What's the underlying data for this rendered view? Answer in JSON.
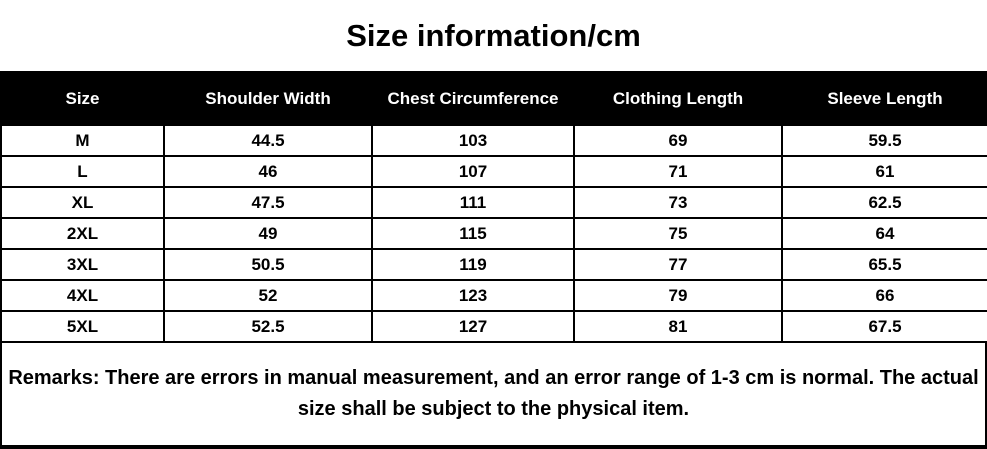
{
  "title": "Size information/cm",
  "table": {
    "columns": [
      "Size",
      "Shoulder Width",
      "Chest Circumference",
      "Clothing Length",
      "Sleeve Length"
    ],
    "rows": [
      [
        "M",
        "44.5",
        "103",
        "69",
        "59.5"
      ],
      [
        "L",
        "46",
        "107",
        "71",
        "61"
      ],
      [
        "XL",
        "47.5",
        "111",
        "73",
        "62.5"
      ],
      [
        "2XL",
        "49",
        "115",
        "75",
        "64"
      ],
      [
        "3XL",
        "50.5",
        "119",
        "77",
        "65.5"
      ],
      [
        "4XL",
        "52",
        "123",
        "79",
        "66"
      ],
      [
        "5XL",
        "52.5",
        "127",
        "81",
        "67.5"
      ]
    ]
  },
  "remarks": "Remarks: There are errors in manual measurement, and an error range of 1-3 cm is normal. The actual size shall be subject to the physical item.",
  "colors": {
    "header_bg": "#000000",
    "header_text": "#ffffff",
    "body_text": "#000000",
    "background": "#ffffff",
    "border": "#000000"
  },
  "chart_data": {
    "type": "table",
    "title": "Size information/cm",
    "units": "cm",
    "columns": [
      "Size",
      "Shoulder Width",
      "Chest Circumference",
      "Clothing Length",
      "Sleeve Length"
    ],
    "rows": [
      [
        "M",
        44.5,
        103,
        69,
        59.5
      ],
      [
        "L",
        46,
        107,
        71,
        61
      ],
      [
        "XL",
        47.5,
        111,
        73,
        62.5
      ],
      [
        "2XL",
        49,
        115,
        75,
        64
      ],
      [
        "3XL",
        50.5,
        119,
        77,
        65.5
      ],
      [
        "4XL",
        52,
        123,
        79,
        66
      ],
      [
        "5XL",
        52.5,
        127,
        81,
        67.5
      ]
    ],
    "note": "Remarks: There are errors in manual measurement, and an error range of 1-3 cm is normal. The actual size shall be subject to the physical item."
  }
}
